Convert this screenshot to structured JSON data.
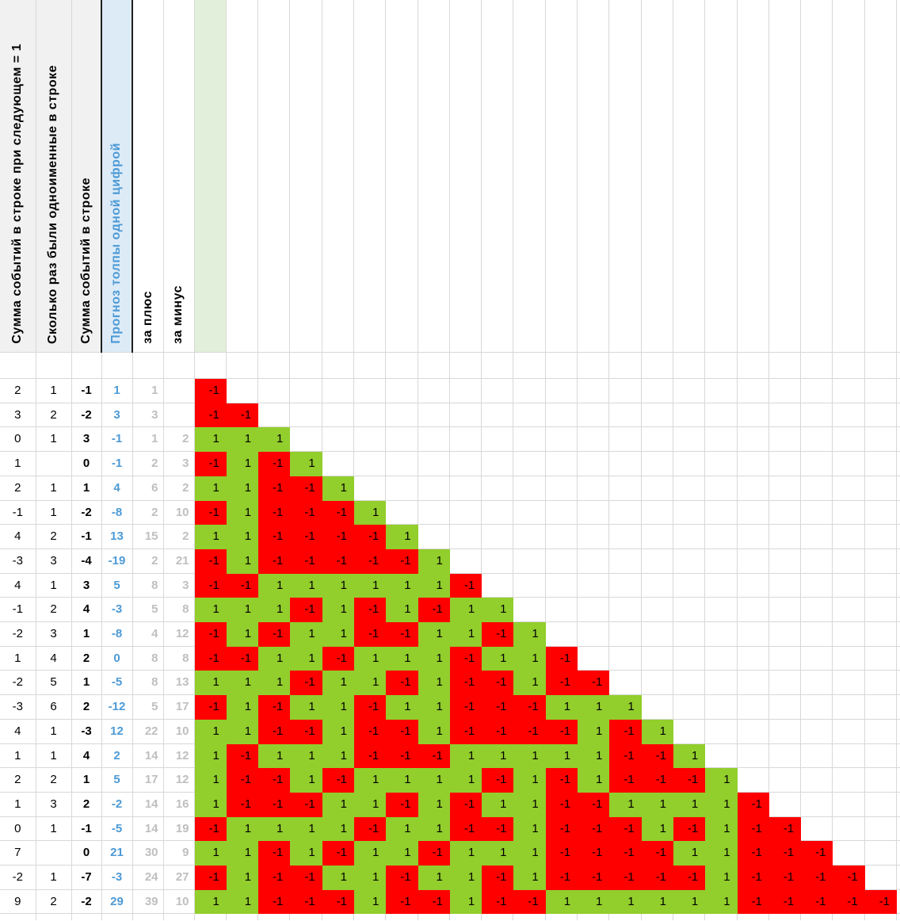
{
  "sheet": {
    "header_columns": [
      {
        "id": "a",
        "label": "Сумма событий в строке при следующем = 1"
      },
      {
        "id": "b",
        "label": "Сколько раз были одноименные в строке"
      },
      {
        "id": "c",
        "label": "Сумма событий в строке"
      },
      {
        "id": "d",
        "label": "Прогноз толпы одной цифрой"
      },
      {
        "id": "e",
        "label": "за плюс"
      },
      {
        "id": "f",
        "label": "за минус"
      }
    ],
    "matrix_column_count": 22,
    "rows": [
      {
        "a": "2",
        "b": "1",
        "c": "-1",
        "d": "1",
        "e": "1",
        "f": "",
        "matrix": [
          -1
        ]
      },
      {
        "a": "3",
        "b": "2",
        "c": "-2",
        "d": "3",
        "e": "3",
        "f": "",
        "matrix": [
          -1,
          -1
        ]
      },
      {
        "a": "0",
        "b": "1",
        "c": "3",
        "d": "-1",
        "e": "1",
        "f": "2",
        "matrix": [
          1,
          1,
          1
        ]
      },
      {
        "a": "1",
        "b": "",
        "c": "0",
        "d": "-1",
        "e": "2",
        "f": "3",
        "matrix": [
          -1,
          1,
          -1,
          1
        ]
      },
      {
        "a": "2",
        "b": "1",
        "c": "1",
        "d": "4",
        "e": "6",
        "f": "2",
        "matrix": [
          1,
          1,
          -1,
          -1,
          1
        ]
      },
      {
        "a": "-1",
        "b": "1",
        "c": "-2",
        "d": "-8",
        "e": "2",
        "f": "10",
        "matrix": [
          -1,
          1,
          -1,
          -1,
          -1,
          1
        ]
      },
      {
        "a": "4",
        "b": "2",
        "c": "-1",
        "d": "13",
        "e": "15",
        "f": "2",
        "matrix": [
          1,
          1,
          -1,
          -1,
          -1,
          -1,
          1
        ]
      },
      {
        "a": "-3",
        "b": "3",
        "c": "-4",
        "d": "-19",
        "e": "2",
        "f": "21",
        "matrix": [
          -1,
          1,
          -1,
          -1,
          -1,
          -1,
          -1,
          1
        ]
      },
      {
        "a": "4",
        "b": "1",
        "c": "3",
        "d": "5",
        "e": "8",
        "f": "3",
        "matrix": [
          -1,
          -1,
          1,
          1,
          1,
          1,
          1,
          1,
          -1
        ]
      },
      {
        "a": "-1",
        "b": "2",
        "c": "4",
        "d": "-3",
        "e": "5",
        "f": "8",
        "matrix": [
          1,
          1,
          1,
          -1,
          1,
          -1,
          1,
          -1,
          1,
          1
        ]
      },
      {
        "a": "-2",
        "b": "3",
        "c": "1",
        "d": "-8",
        "e": "4",
        "f": "12",
        "matrix": [
          -1,
          1,
          -1,
          1,
          1,
          -1,
          -1,
          1,
          1,
          -1,
          1
        ]
      },
      {
        "a": "1",
        "b": "4",
        "c": "2",
        "d": "0",
        "e": "8",
        "f": "8",
        "matrix": [
          -1,
          -1,
          1,
          1,
          -1,
          1,
          1,
          1,
          -1,
          1,
          1,
          -1
        ]
      },
      {
        "a": "-2",
        "b": "5",
        "c": "1",
        "d": "-5",
        "e": "8",
        "f": "13",
        "matrix": [
          1,
          1,
          1,
          -1,
          1,
          1,
          -1,
          1,
          -1,
          -1,
          1,
          -1,
          -1
        ]
      },
      {
        "a": "-3",
        "b": "6",
        "c": "2",
        "d": "-12",
        "e": "5",
        "f": "17",
        "matrix": [
          -1,
          1,
          -1,
          1,
          1,
          -1,
          1,
          1,
          -1,
          -1,
          -1,
          1,
          1,
          1
        ]
      },
      {
        "a": "4",
        "b": "1",
        "c": "-3",
        "d": "12",
        "e": "22",
        "f": "10",
        "matrix": [
          1,
          1,
          -1,
          -1,
          1,
          -1,
          -1,
          1,
          -1,
          -1,
          -1,
          -1,
          1,
          -1,
          1
        ]
      },
      {
        "a": "1",
        "b": "1",
        "c": "4",
        "d": "2",
        "e": "14",
        "f": "12",
        "matrix": [
          1,
          -1,
          1,
          1,
          1,
          -1,
          -1,
          -1,
          1,
          1,
          1,
          1,
          1,
          -1,
          -1,
          1
        ]
      },
      {
        "a": "2",
        "b": "2",
        "c": "1",
        "d": "5",
        "e": "17",
        "f": "12",
        "matrix": [
          1,
          -1,
          -1,
          1,
          -1,
          1,
          1,
          1,
          1,
          -1,
          1,
          -1,
          1,
          -1,
          -1,
          -1,
          1
        ]
      },
      {
        "a": "1",
        "b": "3",
        "c": "2",
        "d": "-2",
        "e": "14",
        "f": "16",
        "matrix": [
          1,
          -1,
          -1,
          -1,
          1,
          1,
          -1,
          1,
          -1,
          1,
          1,
          -1,
          -1,
          1,
          1,
          1,
          1,
          -1
        ]
      },
      {
        "a": "0",
        "b": "1",
        "c": "-1",
        "d": "-5",
        "e": "14",
        "f": "19",
        "matrix": [
          -1,
          1,
          1,
          1,
          1,
          -1,
          1,
          1,
          -1,
          -1,
          1,
          -1,
          -1,
          -1,
          1,
          -1,
          1,
          -1,
          -1
        ]
      },
      {
        "a": "7",
        "b": "",
        "c": "0",
        "d": "21",
        "e": "30",
        "f": "9",
        "matrix": [
          1,
          1,
          -1,
          1,
          -1,
          1,
          1,
          -1,
          1,
          1,
          1,
          -1,
          -1,
          -1,
          -1,
          1,
          1,
          -1,
          -1,
          -1
        ]
      },
      {
        "a": "-2",
        "b": "1",
        "c": "-7",
        "d": "-3",
        "e": "24",
        "f": "27",
        "matrix": [
          -1,
          1,
          -1,
          -1,
          1,
          1,
          -1,
          1,
          1,
          -1,
          1,
          -1,
          -1,
          -1,
          -1,
          -1,
          1,
          -1,
          -1,
          -1,
          -1
        ]
      },
      {
        "a": "9",
        "b": "2",
        "c": "-2",
        "d": "29",
        "e": "39",
        "f": "10",
        "matrix": [
          1,
          1,
          -1,
          -1,
          -1,
          1,
          -1,
          -1,
          1,
          -1,
          -1,
          1,
          1,
          1,
          1,
          1,
          1,
          -1,
          -1,
          -1,
          -1,
          -1
        ]
      }
    ],
    "colors": {
      "positive_fill": "#92CE2C",
      "negative_fill": "#FF0000",
      "forecast_text": "#4D9AD5",
      "muted_text": "#BFBFBF",
      "header_fill_gray": "#F1F1F1",
      "header_fill_blue": "#DDEBF7",
      "header_fill_green": "#E2EFDA",
      "gridline": "#D8D8D8"
    }
  }
}
